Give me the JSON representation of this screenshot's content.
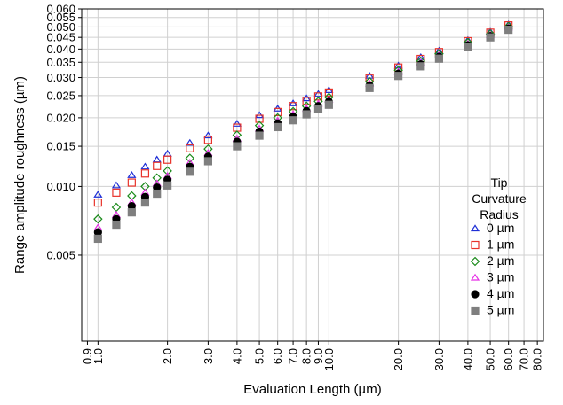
{
  "chart_data": {
    "type": "scatter",
    "xlabel": "Evaluation Length (µm)",
    "ylabel": "Range amplitude roughness (µm)",
    "xscale": "log",
    "yscale": "log",
    "xlim": [
      0.85,
      85
    ],
    "ylim": [
      0.0021,
      0.06
    ],
    "grid": true,
    "legend_position": "right",
    "legend_title": [
      "Tip",
      "Curvature",
      "Radius"
    ],
    "x_tick_labels": [
      "0.9",
      "1.0",
      "2.0",
      "3.0",
      "4.0",
      "5.0",
      "6.0",
      "7.0",
      "8.0",
      "9.0",
      "10.0",
      "20.0",
      "30.0",
      "40.0",
      "50.0",
      "60.0",
      "70.0",
      "80.0"
    ],
    "x_tick_values": [
      0.9,
      1,
      2,
      3,
      4,
      5,
      6,
      7,
      8,
      9,
      10,
      20,
      30,
      40,
      50,
      60,
      70,
      80
    ],
    "y_tick_labels": [
      "0.005",
      "0.010",
      "0.015",
      "0.020",
      "0.025",
      "0.030",
      "0.035",
      "0.040",
      "0.045",
      "0.050",
      "0.055",
      "0.060"
    ],
    "y_tick_values": [
      0.005,
      0.01,
      0.015,
      0.02,
      0.025,
      0.03,
      0.035,
      0.04,
      0.045,
      0.05,
      0.055,
      0.06
    ],
    "series": [
      {
        "name": "0 µm",
        "marker": "triangle",
        "color": "#1f2fd6",
        "filled": false,
        "x": [
          1,
          1.2,
          1.4,
          1.6,
          1.8,
          2,
          2.5,
          3,
          4,
          5,
          6,
          7,
          8,
          9,
          10,
          15,
          20,
          25,
          30,
          40,
          50,
          60
        ],
        "y": [
          0.0092,
          0.0101,
          0.0112,
          0.0122,
          0.0131,
          0.0139,
          0.0155,
          0.0167,
          0.0188,
          0.0205,
          0.0219,
          0.0231,
          0.0243,
          0.0254,
          0.0264,
          0.0305,
          0.0338,
          0.0368,
          0.0393,
          0.0437,
          0.0476,
          0.0512
        ]
      },
      {
        "name": "1 µm",
        "marker": "square",
        "color": "#e8332b",
        "filled": false,
        "x": [
          1,
          1.2,
          1.4,
          1.6,
          1.8,
          2,
          2.5,
          3,
          4,
          5,
          6,
          7,
          8,
          9,
          10,
          15,
          20,
          25,
          30,
          40,
          50,
          60
        ],
        "y": [
          0.0085,
          0.0094,
          0.0104,
          0.0114,
          0.0123,
          0.0131,
          0.0147,
          0.016,
          0.0181,
          0.0198,
          0.0212,
          0.0225,
          0.0237,
          0.0248,
          0.0258,
          0.0298,
          0.0332,
          0.0362,
          0.0388,
          0.0433,
          0.0472,
          0.0508
        ]
      },
      {
        "name": "2 µm",
        "marker": "diamond",
        "color": "#1a8a1a",
        "filled": false,
        "x": [
          1,
          1.2,
          1.4,
          1.6,
          1.8,
          2,
          2.5,
          3,
          4,
          5,
          6,
          7,
          8,
          9,
          10,
          15,
          20,
          25,
          30,
          40,
          50,
          60
        ],
        "y": [
          0.0072,
          0.0081,
          0.0091,
          0.01,
          0.0109,
          0.0117,
          0.0133,
          0.0146,
          0.0168,
          0.0185,
          0.02,
          0.0213,
          0.0225,
          0.0236,
          0.0246,
          0.0288,
          0.0323,
          0.0354,
          0.0381,
          0.0427,
          0.0466,
          0.0502
        ]
      },
      {
        "name": "3 µm",
        "marker": "triangle",
        "color": "#e62ee6",
        "filled": false,
        "x": [
          1,
          1.2,
          1.4,
          1.6,
          1.8,
          2,
          2.5,
          3,
          4,
          5,
          6,
          7,
          8,
          9,
          10,
          15,
          20,
          25,
          30,
          40,
          50,
          60
        ],
        "y": [
          0.0066,
          0.0075,
          0.0085,
          0.0094,
          0.0103,
          0.0111,
          0.0127,
          0.014,
          0.0162,
          0.0179,
          0.0194,
          0.0207,
          0.0219,
          0.023,
          0.024,
          0.0282,
          0.0317,
          0.0348,
          0.0375,
          0.0421,
          0.0461,
          0.0497
        ]
      },
      {
        "name": "4 µm",
        "marker": "circle",
        "color": "#000000",
        "filled": true,
        "x": [
          1,
          1.2,
          1.4,
          1.6,
          1.8,
          2,
          2.5,
          3,
          4,
          5,
          6,
          7,
          8,
          9,
          10,
          15,
          20,
          25,
          30,
          40,
          50,
          60
        ],
        "y": [
          0.0063,
          0.0072,
          0.0082,
          0.009,
          0.0099,
          0.0107,
          0.0122,
          0.0135,
          0.0157,
          0.0174,
          0.0189,
          0.0202,
          0.0214,
          0.0225,
          0.0235,
          0.0277,
          0.0312,
          0.0343,
          0.037,
          0.0416,
          0.0456,
          0.0492
        ]
      },
      {
        "name": "5 µm",
        "marker": "square",
        "color": "#7f7f7f",
        "filled": true,
        "x": [
          1,
          1.2,
          1.4,
          1.6,
          1.8,
          2,
          2.5,
          3,
          4,
          5,
          6,
          7,
          8,
          9,
          10,
          15,
          20,
          25,
          30,
          40,
          50,
          60
        ],
        "y": [
          0.0059,
          0.0068,
          0.0077,
          0.0085,
          0.0093,
          0.0101,
          0.0116,
          0.0129,
          0.015,
          0.0167,
          0.0182,
          0.0195,
          0.0207,
          0.0218,
          0.0228,
          0.027,
          0.0305,
          0.0336,
          0.0363,
          0.041,
          0.045,
          0.0486
        ]
      }
    ]
  }
}
